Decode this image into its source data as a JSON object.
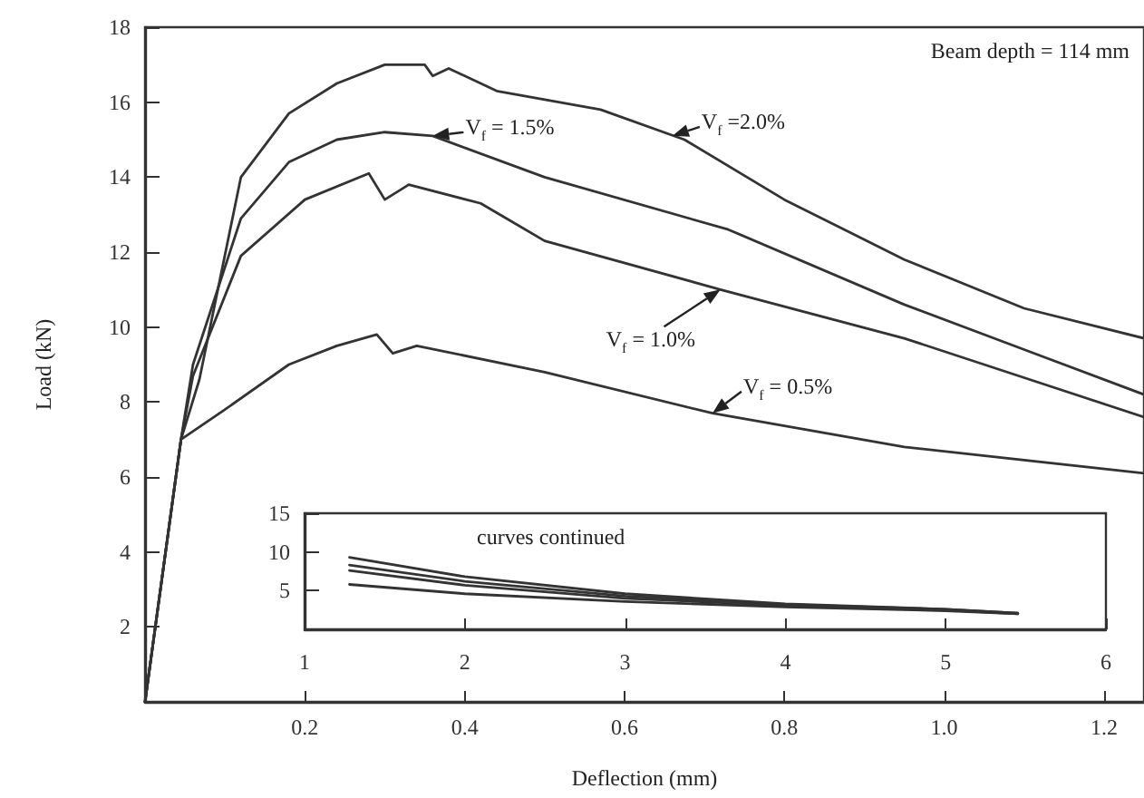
{
  "chart_data": [
    {
      "type": "line",
      "xlabel": "Deflection (mm)",
      "ylabel": "Load (kN)",
      "xlim": [
        0,
        1.25
      ],
      "ylim": [
        0,
        18
      ],
      "xticks": [
        0.2,
        0.4,
        0.6,
        0.8,
        {
          "value": 1,
          "label": "1.0"
        },
        1.2
      ],
      "yticks": [
        {
          "value": 0,
          "label": null
        },
        2,
        4,
        6,
        8,
        10,
        12,
        14,
        16,
        18
      ],
      "marker": "none",
      "line_style": "solid",
      "annotations": [
        "Beam depth = 114 mm",
        {
          "text": "V$_{f}$ = 1.5%",
          "x": 0.36,
          "y": 15.1
        },
        {
          "text": "V$_{f}$ =2.0%",
          "x": 0.66,
          "y": 15.1
        },
        {
          "text": "V$_{f}$ = 1.0%",
          "x": 0.72,
          "y": 11.0
        },
        {
          "text": "V$_{f}$ = 0.5%",
          "x": 0.71,
          "y": 7.7
        }
      ],
      "series": [
        {
          "color": "#333333",
          "x": [
            0,
            0.045,
            0.1,
            0.18,
            0.24,
            0.29,
            0.31,
            0.34,
            0.5,
            0.71,
            0.95,
            1.25
          ],
          "values": [
            0,
            7.0,
            7.8,
            9.0,
            9.5,
            9.8,
            9.3,
            9.5,
            8.8,
            7.7,
            6.8,
            6.1
          ]
        },
        {
          "color": "#333333",
          "x": [
            0,
            0.045,
            0.06,
            0.12,
            0.2,
            0.28,
            0.3,
            0.33,
            0.42,
            0.5,
            0.72,
            0.95,
            1.25
          ],
          "values": [
            0,
            7.0,
            8.7,
            11.9,
            13.4,
            14.1,
            13.4,
            13.8,
            13.3,
            12.3,
            11.0,
            9.7,
            7.6
          ]
        },
        {
          "color": "#333333",
          "x": [
            0,
            0.045,
            0.06,
            0.12,
            0.18,
            0.24,
            0.3,
            0.36,
            0.5,
            0.73,
            0.95,
            1.1,
            1.25
          ],
          "values": [
            0,
            7.0,
            9.0,
            12.9,
            14.4,
            15.0,
            15.2,
            15.1,
            14.0,
            12.6,
            10.6,
            9.4,
            8.2
          ]
        },
        {
          "color": "#333333",
          "x": [
            0,
            0.045,
            0.068,
            0.12,
            0.18,
            0.24,
            0.3,
            0.35,
            0.36,
            0.38,
            0.44,
            0.57,
            0.675,
            0.8,
            0.95,
            1.1,
            1.25
          ],
          "values": [
            0,
            7.0,
            8.6,
            14.0,
            15.7,
            16.5,
            17.0,
            17.0,
            16.7,
            16.9,
            16.3,
            15.8,
            15.0,
            13.4,
            11.8,
            10.5,
            9.7
          ]
        }
      ]
    },
    {
      "type": "line",
      "title": "curves continued",
      "xlim": [
        1,
        6
      ],
      "ylim": [
        0,
        15
      ],
      "xticks": [
        1,
        2,
        3,
        4,
        5,
        6
      ],
      "yticks": [
        5,
        10,
        15
      ],
      "marker": "none",
      "line_style": "solid",
      "series": [
        {
          "color": "#333333",
          "x": [
            1.28,
            2,
            3,
            4,
            5,
            5.45
          ],
          "values": [
            9.3,
            6.8,
            4.6,
            3.3,
            2.6,
            2.1
          ]
        },
        {
          "color": "#333333",
          "x": [
            1.28,
            2,
            3,
            4,
            5,
            5.45
          ],
          "values": [
            8.3,
            6.2,
            4.3,
            3.2,
            2.6,
            2.1
          ]
        },
        {
          "color": "#333333",
          "x": [
            1.28,
            2,
            3,
            4,
            5,
            5.45
          ],
          "values": [
            7.6,
            5.7,
            4.0,
            3.1,
            2.5,
            2.0
          ]
        },
        {
          "color": "#333333",
          "x": [
            1.28,
            2,
            3,
            4,
            5,
            5.45
          ],
          "values": [
            5.8,
            4.6,
            3.6,
            2.9,
            2.4,
            2.0
          ]
        }
      ]
    }
  ]
}
